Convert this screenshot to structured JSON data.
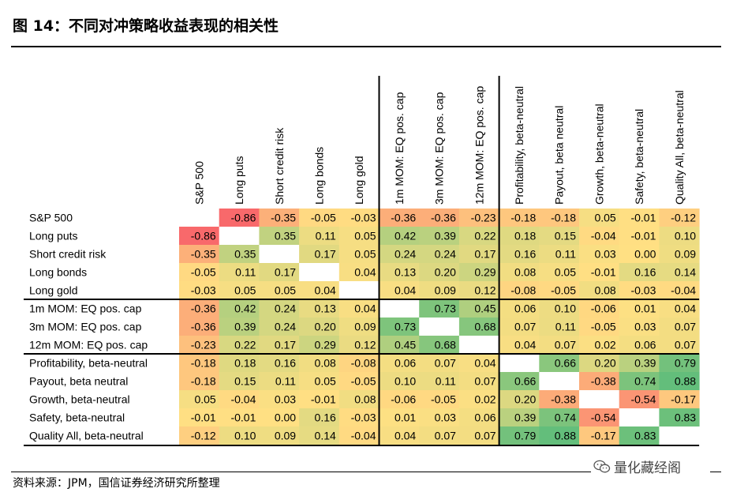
{
  "figure": {
    "title": "图 14：不同对冲策略收益表现的相关性",
    "source": "资料来源：JPM，国信证券经济研究所整理",
    "watermark": "量化藏经阁",
    "watermark_icon": "wechat-icon"
  },
  "chart_data": {
    "type": "heatmap",
    "labels": [
      "S&P 500",
      "Long puts",
      "Short credit risk",
      "Long bonds",
      "Long gold",
      "1m MOM: EQ pos. cap",
      "3m MOM: EQ pos. cap",
      "12m MOM: EQ pos. cap",
      "Profitability, beta-neutral",
      "Payout, beta neutral",
      "Growth, beta-neutral",
      "Safety, beta-neutral",
      "Quality All, beta-neutral"
    ],
    "values": [
      [
        null,
        -0.86,
        -0.35,
        -0.05,
        -0.03,
        -0.36,
        -0.36,
        -0.23,
        -0.18,
        -0.18,
        0.05,
        -0.01,
        -0.12
      ],
      [
        -0.86,
        null,
        0.35,
        0.11,
        0.05,
        0.42,
        0.39,
        0.22,
        0.18,
        0.15,
        -0.04,
        -0.01,
        0.1
      ],
      [
        -0.35,
        0.35,
        null,
        0.17,
        0.05,
        0.24,
        0.24,
        0.17,
        0.16,
        0.11,
        0.03,
        0.0,
        0.09
      ],
      [
        -0.05,
        0.11,
        0.17,
        null,
        0.04,
        0.13,
        0.2,
        0.29,
        0.08,
        0.05,
        -0.01,
        0.16,
        0.14
      ],
      [
        -0.03,
        0.05,
        0.05,
        0.04,
        null,
        0.04,
        0.09,
        0.12,
        -0.08,
        -0.05,
        0.08,
        -0.03,
        -0.04
      ],
      [
        -0.36,
        0.42,
        0.24,
        0.13,
        0.04,
        null,
        0.73,
        0.45,
        0.06,
        0.1,
        -0.06,
        0.01,
        0.04
      ],
      [
        -0.36,
        0.39,
        0.24,
        0.2,
        0.09,
        0.73,
        null,
        0.68,
        0.07,
        0.11,
        -0.05,
        0.03,
        0.07
      ],
      [
        -0.23,
        0.22,
        0.17,
        0.29,
        0.12,
        0.45,
        0.68,
        null,
        0.04,
        0.07,
        0.02,
        0.06,
        0.07
      ],
      [
        -0.18,
        0.18,
        0.16,
        0.08,
        -0.08,
        0.06,
        0.07,
        0.04,
        null,
        0.66,
        0.2,
        0.39,
        0.79
      ],
      [
        -0.18,
        0.15,
        0.11,
        0.05,
        -0.05,
        0.1,
        0.11,
        0.07,
        0.66,
        null,
        -0.38,
        0.74,
        0.88
      ],
      [
        0.05,
        -0.04,
        0.03,
        -0.01,
        0.08,
        -0.06,
        -0.05,
        0.02,
        0.2,
        -0.38,
        null,
        -0.54,
        -0.17
      ],
      [
        -0.01,
        -0.01,
        0.0,
        0.16,
        -0.03,
        0.01,
        0.03,
        0.06,
        0.39,
        0.74,
        -0.54,
        null,
        0.83
      ],
      [
        -0.12,
        0.1,
        0.09,
        0.14,
        -0.04,
        0.04,
        0.07,
        0.07,
        0.79,
        0.88,
        -0.17,
        0.83,
        null
      ]
    ],
    "group_boundaries_after": [
      4,
      7
    ],
    "colors": {
      "negative": "#f8696b",
      "neutral": "#ffe083",
      "positive": "#63be7b",
      "diagonal": "#ffffff"
    },
    "value_range": [
      -0.86,
      0.88
    ],
    "grid": false
  }
}
